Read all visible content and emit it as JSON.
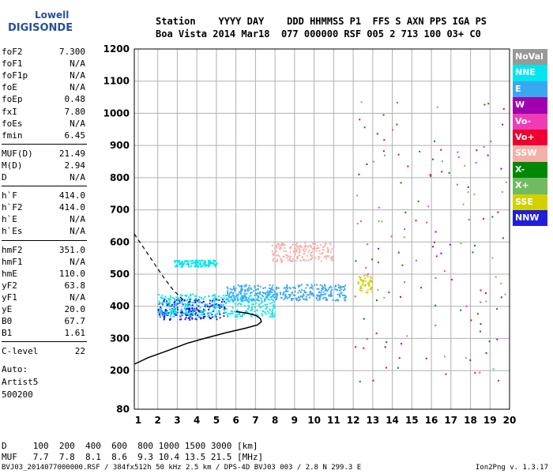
{
  "logo": {
    "line1": "Lowell",
    "line2": "DIGISONDE"
  },
  "header": {
    "labels": "Station    YYYY DAY    DDD HHMMSS P1  FFS S AXN PPS IGA PS",
    "values": "Boa Vista 2014 Mar18  077 000000 RSF 005 2 713 100 03+ C0"
  },
  "params": {
    "group1": [
      {
        "name": "foF2",
        "value": "7.300"
      },
      {
        "name": "foF1",
        "value": "N/A"
      },
      {
        "name": "foF1p",
        "value": "N/A"
      },
      {
        "name": "foE",
        "value": "N/A"
      },
      {
        "name": "foEp",
        "value": "0.48"
      },
      {
        "name": "fxI",
        "value": "7.80"
      },
      {
        "name": "foEs",
        "value": "N/A"
      },
      {
        "name": "fmin",
        "value": "6.45"
      }
    ],
    "group2": [
      {
        "name": "MUF(D)",
        "value": "21.49"
      },
      {
        "name": "M(D)",
        "value": "2.94"
      },
      {
        "name": "D",
        "value": "N/A"
      }
    ],
    "group3": [
      {
        "name": "h`F",
        "value": "414.0"
      },
      {
        "name": "h`F2",
        "value": "414.0"
      },
      {
        "name": "h`E",
        "value": "N/A"
      },
      {
        "name": "h`Es",
        "value": "N/A"
      }
    ],
    "group4": [
      {
        "name": "hmF2",
        "value": "351.0"
      },
      {
        "name": "hmF1",
        "value": "N/A"
      },
      {
        "name": "hmE",
        "value": "110.0"
      },
      {
        "name": "yF2",
        "value": "63.8"
      },
      {
        "name": "yF1",
        "value": "N/A"
      },
      {
        "name": "yE",
        "value": "20.0"
      },
      {
        "name": "B0",
        "value": "67.7"
      },
      {
        "name": "B1",
        "value": "1.61"
      }
    ],
    "group5": [
      {
        "name": "C-level",
        "value": "22"
      }
    ]
  },
  "auto": {
    "line1": "Auto:",
    "line2": "Artist5",
    "line3": "500200"
  },
  "legend": [
    {
      "label": "NoVal",
      "color": "#999999"
    },
    {
      "label": "NNE",
      "color": "#00e6f0"
    },
    {
      "label": "E",
      "color": "#3aa8f0"
    },
    {
      "label": "W",
      "color": "#a000b0"
    },
    {
      "label": "Vo-",
      "color": "#f03cb4"
    },
    {
      "label": "Vo+",
      "color": "#f00030"
    },
    {
      "label": "SSW",
      "color": "#f4b0a8"
    },
    {
      "label": "X-",
      "color": "#008800"
    },
    {
      "label": "X+",
      "color": "#70bb60"
    },
    {
      "label": "SSE",
      "color": "#d4d000"
    },
    {
      "label": "NNW",
      "color": "#1e1edc"
    }
  ],
  "footer": {
    "d_row": "D     100  200  400  600  800 1000 1500 3000 [km]",
    "muf_row": "MUF   7.7  7.8  8.1  8.6  9.3 10.4 13.5 21.5 [MHz]",
    "file": "BVJ03_2014077000000.RSF / 384fx512h 50 kHz 2.5 km / DPS-4D BVJ03 003 / 2.8 N 299.3 E",
    "version": "Ion2Png v. 1.3.17"
  },
  "chart_data": {
    "type": "scatter",
    "xlim": [
      0.8,
      20
    ],
    "ylim": [
      80,
      1200
    ],
    "x_ticks": [
      1,
      2,
      3,
      4,
      5,
      6,
      7,
      8,
      9,
      10,
      11,
      12,
      13,
      14,
      15,
      16,
      17,
      18,
      19,
      20
    ],
    "y_ticks": [
      80,
      200,
      300,
      400,
      500,
      600,
      700,
      800,
      900,
      1000,
      1100,
      1200
    ],
    "grid": true,
    "legend_placement": "right",
    "profile_curve": {
      "x": [
        0.8,
        1.5,
        2.5,
        3.5,
        4.5,
        5.5,
        6.5,
        7.1,
        7.3,
        7.25,
        7.0,
        6.6,
        6.0
      ],
      "y": [
        220,
        240,
        262,
        285,
        302,
        318,
        332,
        342,
        352,
        362,
        372,
        378,
        384
      ]
    },
    "dashed_trace": {
      "x": [
        0.8,
        1.3,
        1.8,
        2.3,
        2.8,
        3.3
      ],
      "y": [
        625,
        580,
        535,
        490,
        450,
        420
      ]
    },
    "echo_bands": [
      {
        "series": "NNW",
        "x": [
          2,
          5.5
        ],
        "y": [
          360,
          425
        ]
      },
      {
        "series": "NNE",
        "x": [
          2,
          8
        ],
        "y": [
          370,
          440
        ]
      },
      {
        "series": "E",
        "x": [
          5.5,
          11.6
        ],
        "y": [
          420,
          470
        ]
      },
      {
        "series": "NNE",
        "x": [
          2.8,
          5
        ],
        "y": [
          525,
          545
        ]
      },
      {
        "series": "SSW",
        "x": [
          7.8,
          11
        ],
        "y": [
          540,
          600
        ]
      },
      {
        "series": "SSE",
        "x": [
          12.2,
          13
        ],
        "y": [
          440,
          500
        ]
      }
    ]
  }
}
